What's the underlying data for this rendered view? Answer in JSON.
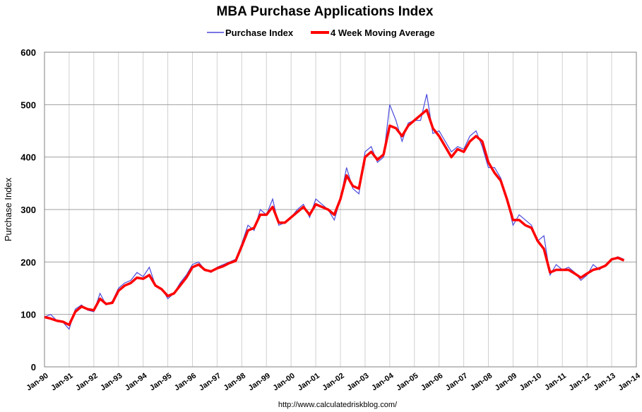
{
  "chart_data": {
    "type": "line",
    "title": "MBA Purchase Applications Index",
    "ylabel": "Purchase Index",
    "xlabel": "",
    "ylim": [
      0,
      600
    ],
    "yticks": [
      "0",
      "100",
      "200",
      "300",
      "400",
      "500",
      "600"
    ],
    "xlim": [
      "1990-01",
      "2014-01"
    ],
    "xticks": [
      "Jan-90",
      "Jan-91",
      "Jan-92",
      "Jan-93",
      "Jan-94",
      "Jan-95",
      "Jan-96",
      "Jan-97",
      "Jan-98",
      "Jan-99",
      "Jan-00",
      "Jan-01",
      "Jan-02",
      "Jan-03",
      "Jan-04",
      "Jan-05",
      "Jan-06",
      "Jan-07",
      "Jan-08",
      "Jan-09",
      "Jan-10",
      "Jan-11",
      "Jan-12",
      "Jan-13",
      "Jan-14"
    ],
    "grid": true,
    "legend_position": "top",
    "colors": {
      "purchase_index": "#4a4adc",
      "moving_average": "#ff0000",
      "grid": "#c0c0c0"
    },
    "series": [
      {
        "name": "Purchase Index",
        "x": [
          "1990-01",
          "1990-04",
          "1990-07",
          "1990-10",
          "1991-01",
          "1991-04",
          "1991-07",
          "1991-10",
          "1992-01",
          "1992-04",
          "1992-07",
          "1992-10",
          "1993-01",
          "1993-04",
          "1993-07",
          "1993-10",
          "1994-01",
          "1994-04",
          "1994-07",
          "1994-10",
          "1995-01",
          "1995-04",
          "1995-07",
          "1995-10",
          "1996-01",
          "1996-04",
          "1996-07",
          "1996-10",
          "1997-01",
          "1997-04",
          "1997-07",
          "1997-10",
          "1998-01",
          "1998-04",
          "1998-07",
          "1998-10",
          "1999-01",
          "1999-04",
          "1999-07",
          "1999-10",
          "2000-01",
          "2000-04",
          "2000-07",
          "2000-10",
          "2001-01",
          "2001-04",
          "2001-07",
          "2001-10",
          "2002-01",
          "2002-04",
          "2002-07",
          "2002-10",
          "2003-01",
          "2003-04",
          "2003-07",
          "2003-10",
          "2004-01",
          "2004-04",
          "2004-07",
          "2004-10",
          "2005-01",
          "2005-04",
          "2005-07",
          "2005-10",
          "2006-01",
          "2006-04",
          "2006-07",
          "2006-10",
          "2007-01",
          "2007-04",
          "2007-07",
          "2007-10",
          "2008-01",
          "2008-04",
          "2008-07",
          "2008-10",
          "2009-01",
          "2009-04",
          "2009-07",
          "2009-10",
          "2010-01",
          "2010-04",
          "2010-07",
          "2010-10",
          "2011-01",
          "2011-04",
          "2011-07",
          "2011-10",
          "2012-01",
          "2012-04",
          "2012-07",
          "2012-10",
          "2013-01",
          "2013-04",
          "2013-07"
        ],
        "values": [
          95,
          100,
          88,
          85,
          72,
          110,
          118,
          108,
          105,
          140,
          118,
          125,
          150,
          160,
          165,
          180,
          172,
          190,
          155,
          150,
          130,
          140,
          160,
          175,
          195,
          200,
          185,
          180,
          190,
          195,
          200,
          205,
          235,
          270,
          260,
          300,
          290,
          320,
          270,
          275,
          285,
          300,
          310,
          285,
          320,
          310,
          300,
          280,
          320,
          380,
          340,
          330,
          410,
          420,
          390,
          400,
          500,
          470,
          430,
          465,
          470,
          470,
          520,
          445,
          450,
          430,
          410,
          420,
          415,
          440,
          450,
          420,
          380,
          380,
          360,
          320,
          270,
          290,
          280,
          270,
          240,
          250,
          175,
          195,
          185,
          190,
          180,
          165,
          175,
          195,
          185,
          195,
          205,
          210,
          205
        ]
      },
      {
        "name": "4 Week Moving Average",
        "x": [
          "1990-01",
          "1990-04",
          "1990-07",
          "1990-10",
          "1991-01",
          "1991-04",
          "1991-07",
          "1991-10",
          "1992-01",
          "1992-04",
          "1992-07",
          "1992-10",
          "1993-01",
          "1993-04",
          "1993-07",
          "1993-10",
          "1994-01",
          "1994-04",
          "1994-07",
          "1994-10",
          "1995-01",
          "1995-04",
          "1995-07",
          "1995-10",
          "1996-01",
          "1996-04",
          "1996-07",
          "1996-10",
          "1997-01",
          "1997-04",
          "1997-07",
          "1997-10",
          "1998-01",
          "1998-04",
          "1998-07",
          "1998-10",
          "1999-01",
          "1999-04",
          "1999-07",
          "1999-10",
          "2000-01",
          "2000-04",
          "2000-07",
          "2000-10",
          "2001-01",
          "2001-04",
          "2001-07",
          "2001-10",
          "2002-01",
          "2002-04",
          "2002-07",
          "2002-10",
          "2003-01",
          "2003-04",
          "2003-07",
          "2003-10",
          "2004-01",
          "2004-04",
          "2004-07",
          "2004-10",
          "2005-01",
          "2005-04",
          "2005-07",
          "2005-10",
          "2006-01",
          "2006-04",
          "2006-07",
          "2006-10",
          "2007-01",
          "2007-04",
          "2007-07",
          "2007-10",
          "2008-01",
          "2008-04",
          "2008-07",
          "2008-10",
          "2009-01",
          "2009-04",
          "2009-07",
          "2009-10",
          "2010-01",
          "2010-04",
          "2010-07",
          "2010-10",
          "2011-01",
          "2011-04",
          "2011-07",
          "2011-10",
          "2012-01",
          "2012-04",
          "2012-07",
          "2012-10",
          "2013-01",
          "2013-04",
          "2013-07"
        ],
        "values": [
          95,
          92,
          88,
          86,
          80,
          105,
          115,
          110,
          108,
          130,
          120,
          122,
          145,
          155,
          160,
          170,
          168,
          175,
          155,
          148,
          135,
          140,
          155,
          170,
          190,
          195,
          185,
          182,
          188,
          192,
          198,
          202,
          230,
          260,
          265,
          290,
          290,
          305,
          275,
          275,
          285,
          295,
          305,
          290,
          310,
          305,
          300,
          290,
          320,
          365,
          345,
          340,
          400,
          410,
          395,
          405,
          460,
          455,
          440,
          460,
          470,
          480,
          490,
          455,
          440,
          420,
          400,
          415,
          410,
          430,
          440,
          430,
          390,
          370,
          355,
          320,
          280,
          280,
          270,
          265,
          240,
          225,
          180,
          185,
          185,
          185,
          178,
          170,
          178,
          185,
          188,
          193,
          205,
          208,
          203
        ]
      }
    ]
  },
  "source": "http://www.calculatedriskblog.com/"
}
